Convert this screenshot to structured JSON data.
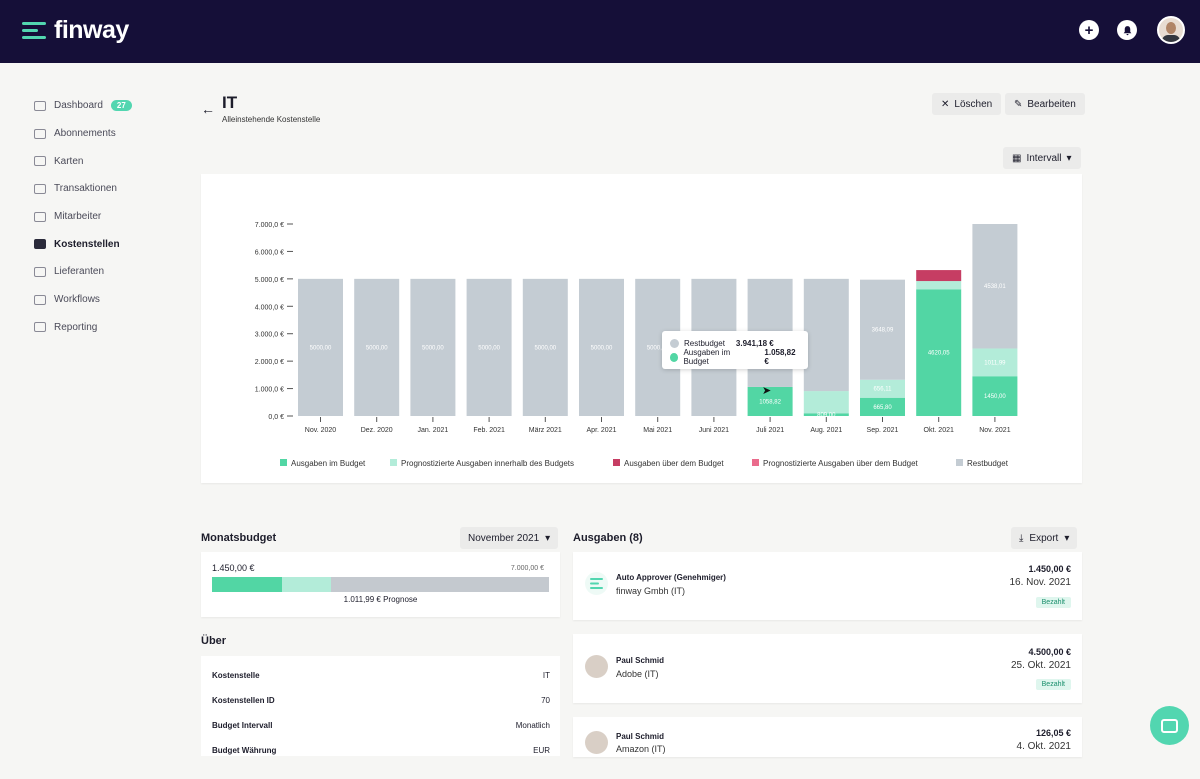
{
  "app": {
    "logo_text": "finway",
    "plus_icon": "plus-icon",
    "bell_icon": "bell-icon"
  },
  "sidebar": {
    "items": [
      {
        "label": "Dashboard",
        "icon": "dashboard-icon",
        "badge": "27",
        "active": false
      },
      {
        "label": "Abonnements",
        "icon": "subscriptions-icon",
        "active": false
      },
      {
        "label": "Karten",
        "icon": "card-icon",
        "active": false
      },
      {
        "label": "Transaktionen",
        "icon": "bank-icon",
        "active": false
      },
      {
        "label": "Mitarbeiter",
        "icon": "users-icon",
        "active": false
      },
      {
        "label": "Kostenstellen",
        "icon": "cost-center-icon",
        "active": true
      },
      {
        "label": "Lieferanten",
        "icon": "supplier-icon",
        "active": false
      },
      {
        "label": "Workflows",
        "icon": "workflow-icon",
        "active": false
      },
      {
        "label": "Reporting",
        "icon": "reporting-icon",
        "active": false
      }
    ]
  },
  "header": {
    "title": "IT",
    "subtitle": "Alleinstehende Kostenstelle",
    "delete_label": "Löschen",
    "edit_label": "Bearbeiten",
    "interval_label": "Intervall"
  },
  "chart_data": {
    "type": "bar",
    "stacked": true,
    "title": "",
    "xlabel": "",
    "ylabel": "",
    "ylim": [
      0,
      7000
    ],
    "yticks": [
      "0,0 €",
      "1.000,0 €",
      "2.000,0 €",
      "3.000,0 €",
      "4.000,0 €",
      "5.000,0 €",
      "6.000,0 €",
      "7.000,0 €"
    ],
    "categories": [
      "Nov. 2020",
      "Dez. 2020",
      "Jan. 2021",
      "Feb. 2021",
      "März 2021",
      "Apr. 2021",
      "Mai 2021",
      "Juni 2021",
      "Juli 2021",
      "Aug. 2021",
      "Sep. 2021",
      "Okt. 2021",
      "Nov. 2021"
    ],
    "series": [
      {
        "name": "Ausgaben im Budget",
        "color": "#52d6a4",
        "values": [
          0,
          0,
          0,
          0,
          0,
          0,
          0,
          0,
          1058.82,
          100,
          665.8,
          4620.05,
          1450
        ]
      },
      {
        "name": "Prognostizierte Ausgaben innerhalb des Budgets",
        "color": "#b3ecd9",
        "values": [
          0,
          0,
          0,
          0,
          0,
          0,
          0,
          0,
          0,
          809,
          656.11,
          300,
          1011.99
        ]
      },
      {
        "name": "Ausgaben über dem Budget",
        "color": "#c63d63",
        "values": [
          0,
          0,
          0,
          0,
          0,
          0,
          0,
          0,
          0,
          0,
          0,
          400,
          0
        ]
      },
      {
        "name": "Prognostizierte Ausgaben über dem Budget",
        "color": "#ea6b8c",
        "values": [
          0,
          0,
          0,
          0,
          0,
          0,
          0,
          0,
          0,
          0,
          0,
          0,
          0
        ]
      },
      {
        "name": "Restbudget",
        "color": "#c4ccd3",
        "values": [
          5000,
          5000,
          5000,
          5000,
          5000,
          5000,
          5000,
          5000,
          3941.18,
          4091,
          3648.09,
          0,
          4538.01
        ]
      }
    ],
    "bar_labels": [
      [
        "5000,00"
      ],
      [
        "5000,00"
      ],
      [
        "5000,00"
      ],
      [
        "5000,00"
      ],
      [
        "5000,00"
      ],
      [
        "5000,00"
      ],
      [
        "5000,00"
      ],
      [],
      [
        "1058,82"
      ],
      [
        "809,00"
      ],
      [
        "665,80",
        "656,11",
        "3648,09"
      ],
      [
        "4620,05"
      ],
      [
        "1450,00",
        "1011,99",
        "4538,01"
      ]
    ],
    "legend_position": "bottom",
    "tooltip": {
      "category": "Juli 2021",
      "rows": [
        {
          "label": "Restbudget",
          "value": "3.941,18 €",
          "color": "#c4ccd3"
        },
        {
          "label": "Ausgaben im Budget",
          "value": "1.058,82 €",
          "color": "#52d6a4"
        }
      ]
    }
  },
  "budget": {
    "title": "Monatsbudget",
    "month": "November 2021",
    "spent": "1.450,00 €",
    "total": "7.000,00 €",
    "forecast": "1.011,99 € Prognose",
    "spent_fraction": 0.207,
    "forecast_fraction": 0.145
  },
  "about": {
    "title": "Über",
    "rows": [
      {
        "key": "Kostenstelle",
        "value": "IT"
      },
      {
        "key": "Kostenstellen ID",
        "value": "70"
      },
      {
        "key": "Budget Intervall",
        "value": "Monatlich"
      },
      {
        "key": "Budget Währung",
        "value": "EUR"
      }
    ]
  },
  "expenses": {
    "title": "Ausgaben (8)",
    "export_label": "Export",
    "items": [
      {
        "name": "Auto Approver (Genehmiger)",
        "merchant": "finway Gmbh (IT)",
        "amount": "1.450,00 €",
        "date": "16. Nov. 2021",
        "status": "Bezahlt"
      },
      {
        "name": "Paul Schmid",
        "merchant": "Adobe (IT)",
        "amount": "4.500,00 €",
        "date": "25. Okt. 2021",
        "status": "Bezahlt"
      },
      {
        "name": "Paul Schmid",
        "merchant": "Amazon (IT)",
        "amount": "126,05 €",
        "date": "4. Okt. 2021",
        "status": ""
      }
    ]
  }
}
